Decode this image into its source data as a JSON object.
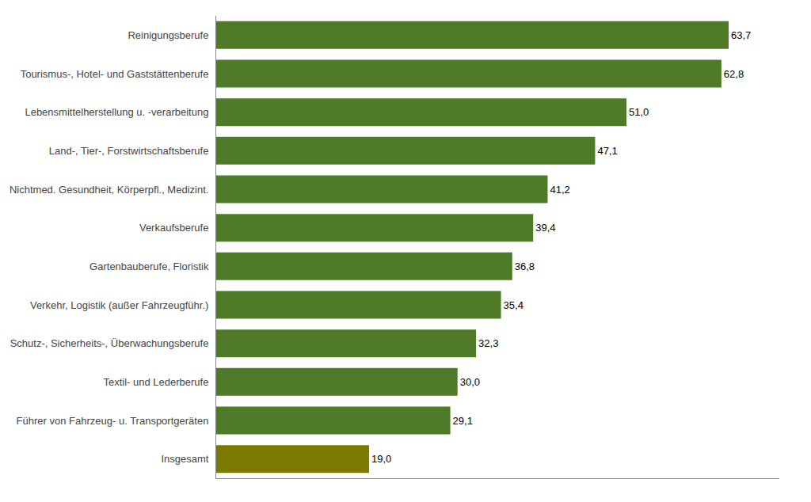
{
  "chart_data": {
    "type": "bar",
    "orientation": "horizontal",
    "categories": [
      "Insgesamt",
      "Führer von Fahrzeug- u. Transportgeräten",
      "Textil- und Lederberufe",
      "Schutz-, Sicherheits-, Überwachungsberufe",
      "Verkehr, Logistik (außer Fahrzeugführ.)",
      "Gartenbauberufe, Floristik",
      "Verkaufsberufe",
      "Nichtmed. Gesundheit, Körperpfl., Medizint.",
      "Land-, Tier-, Forstwirtschaftsberufe",
      "Lebensmittelherstellung u. -verarbeitung",
      "Tourismus-, Hotel- und Gaststättenberufe",
      "Reinigungsberufe"
    ],
    "values": [
      19.0,
      29.1,
      30.0,
      32.3,
      35.4,
      36.8,
      39.4,
      41.2,
      47.1,
      51.0,
      62.8,
      63.7
    ],
    "value_labels": [
      "19,0",
      "29,1",
      "30,0",
      "32,3",
      "35,4",
      "36,8",
      "39,4",
      "41,2",
      "47,1",
      "51,0",
      "62,8",
      "63,7"
    ],
    "data_labels": true,
    "colors": [
      "#7a7a00",
      "#4f7a28",
      "#4f7a28",
      "#4f7a28",
      "#4f7a28",
      "#4f7a28",
      "#4f7a28",
      "#4f7a28",
      "#4f7a28",
      "#4f7a28",
      "#4f7a28",
      "#4f7a28"
    ],
    "xlim": [
      0,
      70
    ],
    "tick_labels": "y",
    "grid": false
  }
}
